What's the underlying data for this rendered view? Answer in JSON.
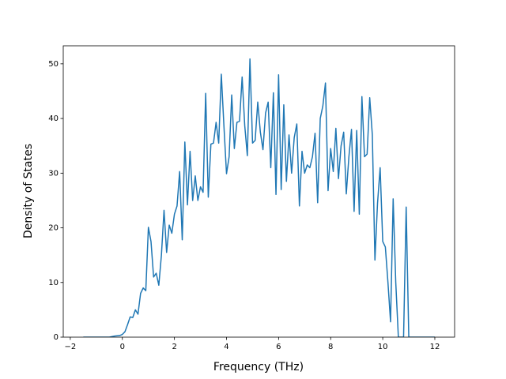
{
  "chart_data": {
    "type": "line",
    "xlabel": "Frequency (THz)",
    "ylabel": "Density of States",
    "xlim": [
      -2.27,
      12.76
    ],
    "ylim": [
      0,
      53.3
    ],
    "xticks": [
      {
        "value": -2,
        "label": "−2"
      },
      0,
      2,
      4,
      6,
      8,
      10,
      12
    ],
    "yticks": [
      0,
      10,
      20,
      30,
      40,
      50
    ],
    "grid": false,
    "series": [
      {
        "color": "#1f77b4",
        "x": [
          -1.5,
          -0.5,
          -0.3,
          -0.1,
          0.0,
          0.1,
          0.2,
          0.3,
          0.4,
          0.5,
          0.6,
          0.7,
          0.8,
          0.9,
          1.0,
          1.1,
          1.2,
          1.3,
          1.4,
          1.5,
          1.6,
          1.7,
          1.8,
          1.9,
          2.0,
          2.1,
          2.2,
          2.3,
          2.4,
          2.5,
          2.6,
          2.7,
          2.8,
          2.9,
          3.0,
          3.1,
          3.2,
          3.3,
          3.4,
          3.5,
          3.6,
          3.7,
          3.8,
          3.9,
          4.0,
          4.1,
          4.2,
          4.3,
          4.4,
          4.5,
          4.6,
          4.7,
          4.8,
          4.9,
          5.0,
          5.1,
          5.2,
          5.3,
          5.4,
          5.5,
          5.6,
          5.7,
          5.8,
          5.9,
          6.0,
          6.1,
          6.2,
          6.3,
          6.4,
          6.5,
          6.6,
          6.7,
          6.8,
          6.9,
          7.0,
          7.1,
          7.2,
          7.3,
          7.4,
          7.5,
          7.6,
          7.7,
          7.8,
          7.9,
          8.0,
          8.1,
          8.2,
          8.3,
          8.4,
          8.5,
          8.6,
          8.7,
          8.8,
          8.9,
          9.0,
          9.1,
          9.2,
          9.3,
          9.4,
          9.5,
          9.6,
          9.7,
          9.8,
          9.9,
          10.0,
          10.1,
          10.2,
          10.3,
          10.4,
          10.5,
          10.6,
          10.7,
          10.8,
          10.9,
          11.0,
          12.0
        ],
        "values": [
          0,
          0,
          0.2,
          0.3,
          0.5,
          1,
          2.3,
          3.7,
          3.6,
          5,
          4.2,
          8,
          9,
          8.5,
          20.1,
          17.5,
          11,
          11.7,
          9.5,
          15,
          23.2,
          15.5,
          20.5,
          19,
          22.5,
          24,
          30.3,
          17.8,
          35.7,
          24.2,
          34,
          25,
          29.5,
          25,
          27.5,
          26.5,
          44.6,
          25.6,
          35.3,
          35.5,
          39.3,
          35.5,
          48.1,
          38.7,
          29.9,
          33,
          44.3,
          34.5,
          39.3,
          39.5,
          47.6,
          38.7,
          33.2,
          50.9,
          35.5,
          36,
          43,
          37.5,
          34.3,
          41,
          43,
          31,
          44.7,
          26.1,
          48,
          27,
          42.5,
          28.5,
          37,
          30,
          36.5,
          39,
          24,
          34,
          30,
          31.5,
          31,
          33,
          37.3,
          24.6,
          40,
          42.3,
          46.5,
          26.8,
          34.5,
          30.3,
          38.2,
          29,
          35,
          37.5,
          26.2,
          33,
          38,
          23,
          37.8,
          22.5,
          44,
          33,
          33.5,
          43.8,
          37,
          14.1,
          24.5,
          31,
          17.5,
          16.5,
          10,
          2.8,
          25.3,
          10,
          0,
          0,
          0,
          23.8,
          0,
          0
        ]
      }
    ]
  }
}
